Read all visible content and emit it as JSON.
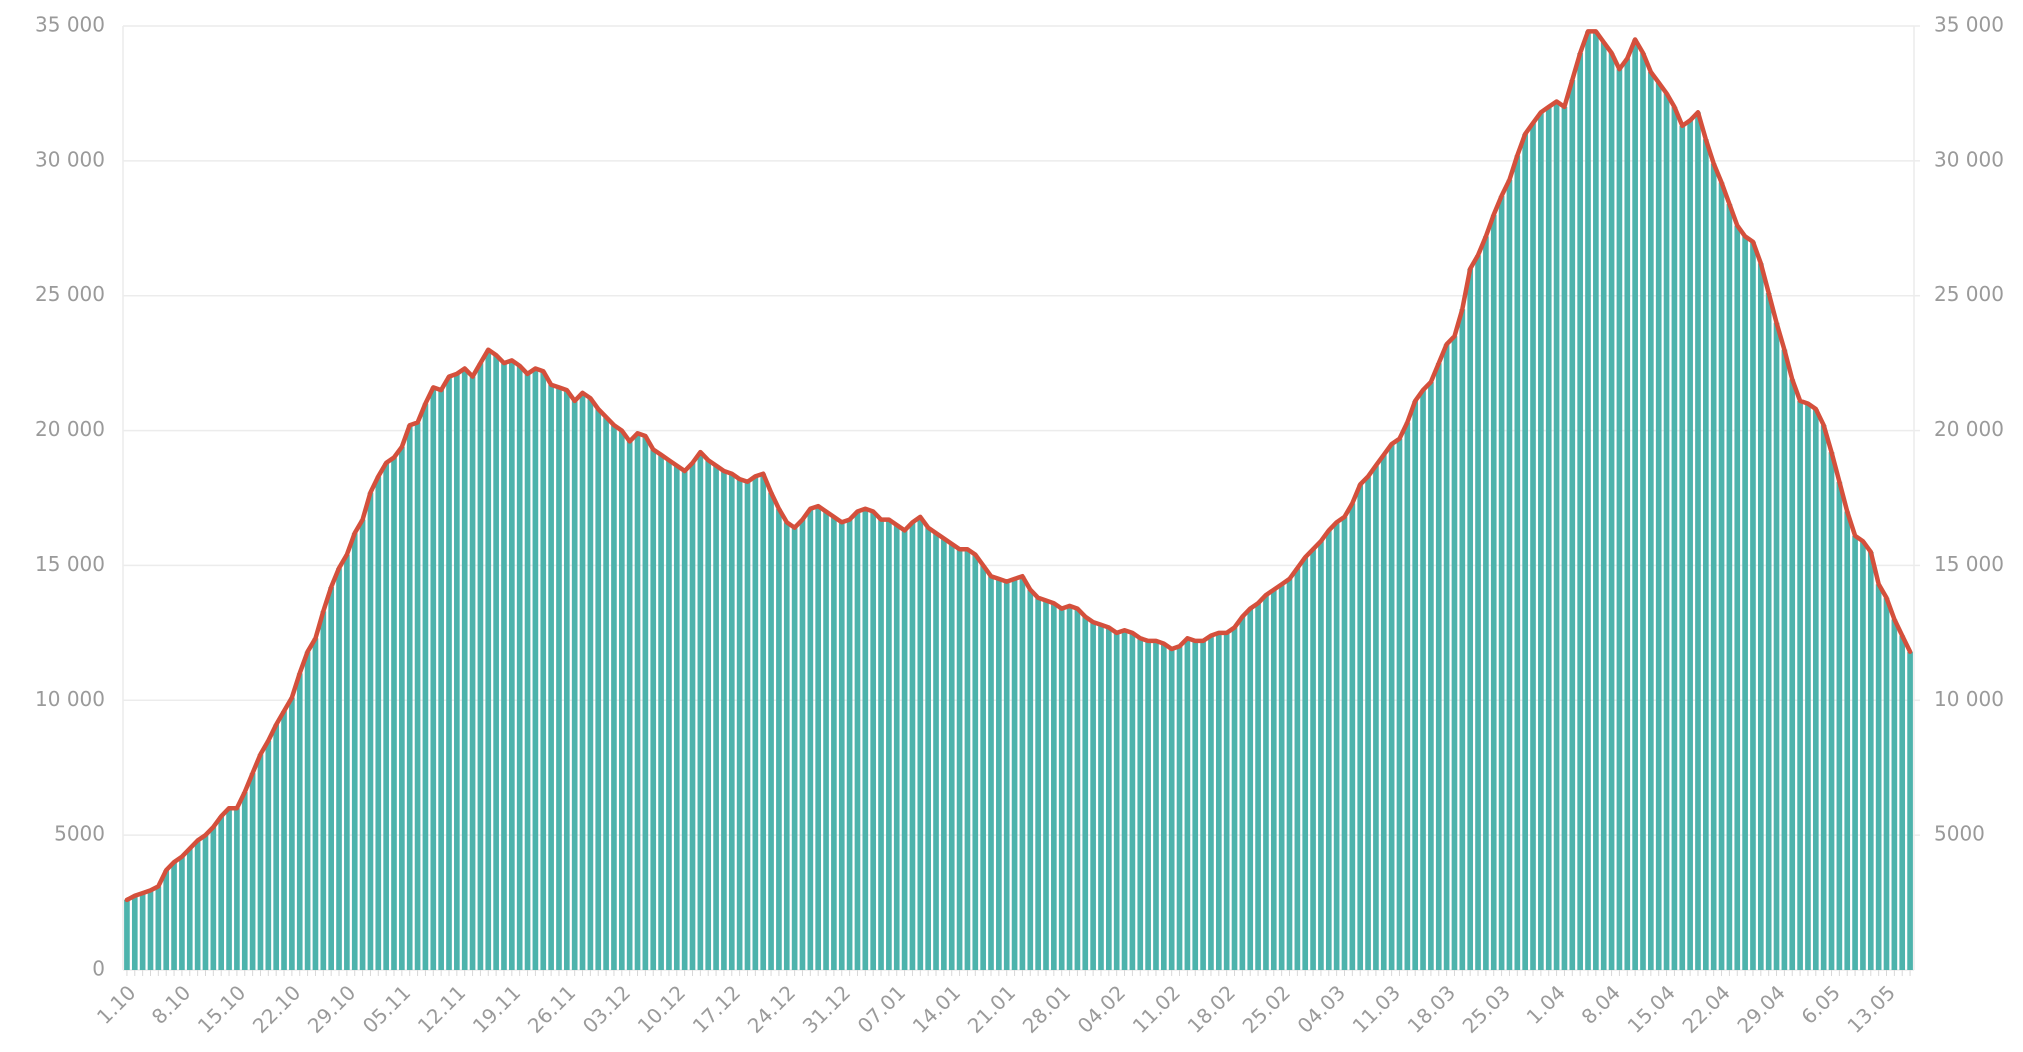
{
  "chart_data": {
    "type": "bar",
    "categories": [
      "1.10",
      null,
      null,
      null,
      null,
      null,
      null,
      "8.10",
      null,
      null,
      null,
      null,
      null,
      null,
      "15.10",
      null,
      null,
      null,
      null,
      null,
      null,
      "22.10",
      null,
      null,
      null,
      null,
      null,
      null,
      "29.10",
      null,
      null,
      null,
      null,
      null,
      null,
      "05.11",
      null,
      null,
      null,
      null,
      null,
      null,
      "12.11",
      null,
      null,
      null,
      null,
      null,
      null,
      "19.11",
      null,
      null,
      null,
      null,
      null,
      null,
      "26.11",
      null,
      null,
      null,
      null,
      null,
      null,
      "03.12",
      null,
      null,
      null,
      null,
      null,
      null,
      "10.12",
      null,
      null,
      null,
      null,
      null,
      null,
      "17.12",
      null,
      null,
      null,
      null,
      null,
      null,
      "24.12",
      null,
      null,
      null,
      null,
      null,
      null,
      "31.12",
      null,
      null,
      null,
      null,
      null,
      null,
      "07.01",
      null,
      null,
      null,
      null,
      null,
      null,
      "14.01",
      null,
      null,
      null,
      null,
      null,
      null,
      "21.01",
      null,
      null,
      null,
      null,
      null,
      null,
      "28.01",
      null,
      null,
      null,
      null,
      null,
      null,
      "04.02",
      null,
      null,
      null,
      null,
      null,
      null,
      "11.02",
      null,
      null,
      null,
      null,
      null,
      null,
      "18.02",
      null,
      null,
      null,
      null,
      null,
      null,
      "25.02",
      null,
      null,
      null,
      null,
      null,
      null,
      "04.03",
      null,
      null,
      null,
      null,
      null,
      null,
      "11.03",
      null,
      null,
      null,
      null,
      null,
      null,
      "18.03",
      null,
      null,
      null,
      null,
      null,
      null,
      "25.03",
      null,
      null,
      null,
      null,
      null,
      null,
      "1.04",
      null,
      null,
      null,
      null,
      null,
      null,
      "8.04",
      null,
      null,
      null,
      null,
      null,
      null,
      "15.04",
      null,
      null,
      null,
      null,
      null,
      null,
      "22.04",
      null,
      null,
      null,
      null,
      null,
      null,
      "29.04",
      null,
      null,
      null,
      null,
      null,
      null,
      "6.05",
      null,
      null,
      null,
      null,
      null,
      null,
      "13.05",
      null,
      null,
      null
    ],
    "values": [
      2600,
      2750,
      2850,
      2950,
      3100,
      3700,
      4000,
      4200,
      4500,
      4800,
      5000,
      5300,
      5700,
      6000,
      6000,
      6600,
      7300,
      8000,
      8500,
      9100,
      9600,
      10100,
      11000,
      11800,
      12300,
      13300,
      14200,
      14900,
      15400,
      16200,
      16700,
      17700,
      18300,
      18800,
      19000,
      19400,
      20200,
      20300,
      21000,
      21600,
      21500,
      22000,
      22100,
      22300,
      22000,
      22500,
      23000,
      22800,
      22500,
      22600,
      22400,
      22100,
      22300,
      22200,
      21700,
      21600,
      21500,
      21100,
      21400,
      21200,
      20800,
      20500,
      20200,
      20000,
      19600,
      19900,
      19800,
      19300,
      19100,
      18900,
      18700,
      18500,
      18800,
      19200,
      18900,
      18700,
      18500,
      18400,
      18200,
      18100,
      18300,
      18400,
      17700,
      17100,
      16600,
      16400,
      16700,
      17100,
      17200,
      17000,
      16800,
      16600,
      16700,
      17000,
      17100,
      17000,
      16700,
      16700,
      16500,
      16300,
      16600,
      16800,
      16400,
      16200,
      16000,
      15800,
      15600,
      15600,
      15400,
      15000,
      14600,
      14500,
      14400,
      14500,
      14600,
      14100,
      13800,
      13700,
      13600,
      13400,
      13500,
      13400,
      13100,
      12900,
      12800,
      12700,
      12500,
      12600,
      12500,
      12300,
      12200,
      12200,
      12100,
      11900,
      12000,
      12300,
      12200,
      12200,
      12400,
      12500,
      12500,
      12700,
      13100,
      13400,
      13600,
      13900,
      14100,
      14300,
      14500,
      14900,
      15300,
      15600,
      15900,
      16300,
      16600,
      16800,
      17300,
      18000,
      18300,
      18700,
      19100,
      19500,
      19700,
      20300,
      21100,
      21500,
      21800,
      22500,
      23200,
      23500,
      24500,
      26000,
      26500,
      27200,
      28000,
      28700,
      29300,
      30200,
      31000,
      31400,
      31800,
      32000,
      32200,
      32000,
      33000,
      34000,
      34800,
      34800,
      34400,
      34000,
      33400,
      33800,
      34500,
      34000,
      33300,
      32900,
      32500,
      32000,
      31300,
      31500,
      31800,
      30800,
      29900,
      29200,
      28400,
      27600,
      27200,
      27000,
      26200,
      25100,
      24000,
      23000,
      21900,
      21100,
      21000,
      20800,
      20200,
      19200,
      18100,
      17000,
      16100,
      15900,
      15500,
      14300,
      13800,
      13000,
      12400,
      11800
    ],
    "color": "#4db3ac",
    "line_color": "#d4503c",
    "ylim": [
      0,
      35000
    ],
    "yticks": [
      0,
      5000,
      {
        "value": 10000,
        "label": "10 000"
      },
      {
        "value": 15000,
        "label": "15 000"
      },
      {
        "value": 20000,
        "label": "20 000"
      },
      {
        "value": 25000,
        "label": "25 000"
      },
      {
        "value": 30000,
        "label": "30 000"
      },
      {
        "value": 35000,
        "label": "35 000"
      }
    ],
    "y2lim": [
      0,
      35000
    ],
    "y2ticks": [
      5000,
      {
        "value": 10000,
        "label": "10 000"
      },
      {
        "value": 15000,
        "label": "15 000"
      },
      {
        "value": 20000,
        "label": "20 000"
      },
      {
        "value": 25000,
        "label": "25 000"
      },
      {
        "value": 30000,
        "label": "30 000"
      },
      {
        "value": 35000,
        "label": "35 000"
      }
    ],
    "grid": true
  }
}
